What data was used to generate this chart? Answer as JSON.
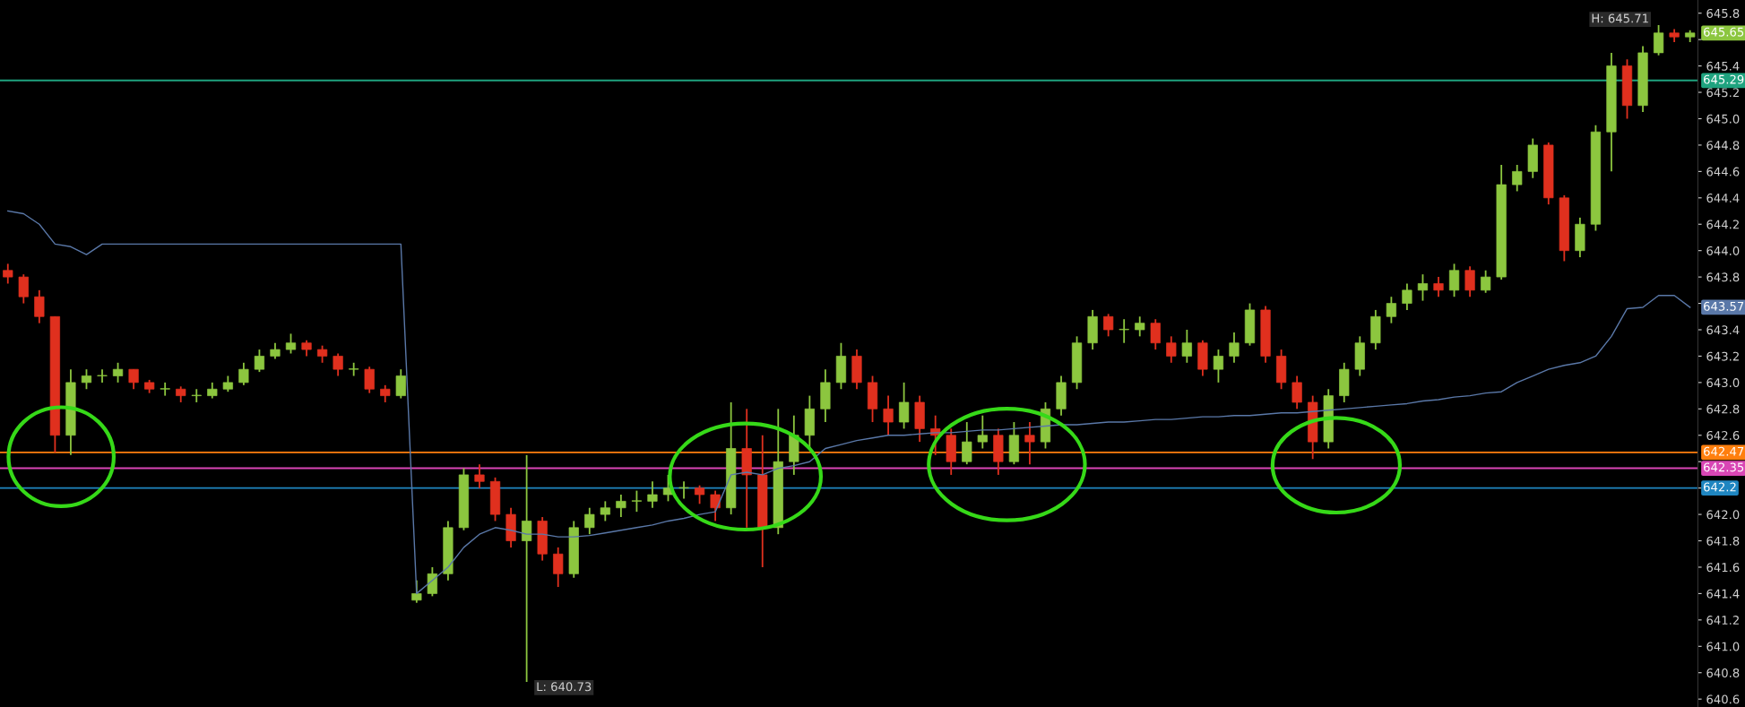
{
  "chart_data": {
    "type": "candlestick",
    "categories": [
      null,
      null,
      null,
      null,
      null,
      null,
      null,
      null,
      null,
      null,
      null,
      null,
      null,
      null,
      null,
      null,
      null,
      null,
      null,
      null,
      null,
      null,
      null,
      null,
      null,
      null,
      null,
      null,
      null,
      null,
      null,
      null,
      null,
      null,
      null,
      null,
      null,
      null,
      null,
      null,
      null,
      null,
      null,
      null,
      null,
      null,
      null,
      null,
      null,
      null,
      null,
      null,
      null,
      null,
      null,
      null,
      null,
      null,
      null,
      null,
      null,
      null,
      null,
      null,
      null,
      null,
      null,
      null,
      null,
      null,
      null,
      null,
      null,
      null,
      null,
      null,
      null,
      null,
      null,
      null,
      null,
      null,
      null,
      null,
      null,
      null,
      null,
      null,
      null,
      null,
      null,
      null,
      null,
      null,
      null,
      null,
      null,
      null,
      null,
      null,
      null,
      null,
      null,
      null,
      null,
      null,
      null,
      null
    ],
    "ohlc": [
      [
        643.85,
        643.9,
        643.75,
        643.8
      ],
      [
        643.8,
        643.82,
        643.6,
        643.65
      ],
      [
        643.65,
        643.7,
        643.45,
        643.5
      ],
      [
        643.5,
        643.5,
        642.47,
        642.6
      ],
      [
        642.6,
        643.1,
        642.45,
        643.0
      ],
      [
        643.0,
        643.1,
        642.95,
        643.05
      ],
      [
        643.05,
        643.1,
        643.0,
        643.05
      ],
      [
        643.05,
        643.15,
        643.0,
        643.1
      ],
      [
        643.1,
        643.1,
        642.95,
        643.0
      ],
      [
        643.0,
        643.02,
        642.92,
        642.95
      ],
      [
        642.95,
        643.0,
        642.9,
        642.95
      ],
      [
        642.95,
        642.97,
        642.85,
        642.9
      ],
      [
        642.9,
        642.95,
        642.85,
        642.9
      ],
      [
        642.9,
        643.0,
        642.88,
        642.95
      ],
      [
        642.95,
        643.05,
        642.93,
        643.0
      ],
      [
        643.0,
        643.15,
        642.98,
        643.1
      ],
      [
        643.1,
        643.25,
        643.08,
        643.2
      ],
      [
        643.2,
        643.3,
        643.18,
        643.25
      ],
      [
        643.25,
        643.37,
        643.22,
        643.3
      ],
      [
        643.3,
        643.32,
        643.2,
        643.25
      ],
      [
        643.25,
        643.28,
        643.15,
        643.2
      ],
      [
        643.2,
        643.22,
        643.05,
        643.1
      ],
      [
        643.1,
        643.15,
        643.05,
        643.1
      ],
      [
        643.1,
        643.12,
        642.92,
        642.95
      ],
      [
        642.95,
        642.98,
        642.85,
        642.9
      ],
      [
        642.9,
        643.1,
        642.88,
        643.05
      ],
      [
        641.35,
        641.5,
        641.33,
        641.4
      ],
      [
        641.4,
        641.6,
        641.38,
        641.55
      ],
      [
        641.55,
        641.95,
        641.5,
        641.9
      ],
      [
        641.9,
        642.35,
        641.88,
        642.3
      ],
      [
        642.3,
        642.38,
        642.2,
        642.25
      ],
      [
        642.25,
        642.28,
        641.95,
        642.0
      ],
      [
        642.0,
        642.05,
        641.75,
        641.8
      ],
      [
        641.8,
        642.45,
        640.73,
        641.95
      ],
      [
        641.95,
        641.98,
        641.65,
        641.7
      ],
      [
        641.7,
        641.75,
        641.45,
        641.55
      ],
      [
        641.55,
        641.95,
        641.52,
        641.9
      ],
      [
        641.9,
        642.05,
        641.85,
        642.0
      ],
      [
        642.0,
        642.1,
        641.95,
        642.05
      ],
      [
        642.05,
        642.15,
        641.98,
        642.1
      ],
      [
        642.1,
        642.18,
        642.02,
        642.1
      ],
      [
        642.1,
        642.25,
        642.05,
        642.15
      ],
      [
        642.15,
        642.3,
        642.1,
        642.2
      ],
      [
        642.2,
        642.25,
        642.12,
        642.2
      ],
      [
        642.2,
        642.22,
        642.08,
        642.15
      ],
      [
        642.15,
        642.18,
        641.95,
        642.05
      ],
      [
        642.05,
        642.85,
        642.0,
        642.5
      ],
      [
        642.5,
        642.8,
        641.9,
        642.3
      ],
      [
        642.3,
        642.6,
        641.6,
        641.9
      ],
      [
        641.9,
        642.8,
        641.85,
        642.4
      ],
      [
        642.4,
        642.75,
        642.3,
        642.6
      ],
      [
        642.6,
        642.9,
        642.5,
        642.8
      ],
      [
        642.8,
        643.1,
        642.7,
        643.0
      ],
      [
        643.0,
        643.3,
        642.95,
        643.2
      ],
      [
        643.2,
        643.25,
        642.95,
        643.0
      ],
      [
        643.0,
        643.05,
        642.7,
        642.8
      ],
      [
        642.8,
        642.9,
        642.6,
        642.7
      ],
      [
        642.7,
        643.0,
        642.65,
        642.85
      ],
      [
        642.85,
        642.9,
        642.55,
        642.65
      ],
      [
        642.65,
        642.75,
        642.45,
        642.6
      ],
      [
        642.6,
        642.65,
        642.3,
        642.4
      ],
      [
        642.4,
        642.7,
        642.38,
        642.55
      ],
      [
        642.55,
        642.75,
        642.5,
        642.6
      ],
      [
        642.6,
        642.65,
        642.3,
        642.4
      ],
      [
        642.4,
        642.7,
        642.38,
        642.6
      ],
      [
        642.6,
        642.7,
        642.38,
        642.55
      ],
      [
        642.55,
        642.85,
        642.5,
        642.8
      ],
      [
        642.8,
        643.05,
        642.75,
        643.0
      ],
      [
        643.0,
        643.35,
        642.95,
        643.3
      ],
      [
        643.3,
        643.55,
        643.25,
        643.5
      ],
      [
        643.5,
        643.52,
        643.35,
        643.4
      ],
      [
        643.4,
        643.48,
        643.3,
        643.4
      ],
      [
        643.4,
        643.5,
        643.35,
        643.45
      ],
      [
        643.45,
        643.48,
        643.25,
        643.3
      ],
      [
        643.3,
        643.35,
        643.15,
        643.2
      ],
      [
        643.2,
        643.4,
        643.15,
        643.3
      ],
      [
        643.3,
        643.32,
        643.05,
        643.1
      ],
      [
        643.1,
        643.25,
        643.0,
        643.2
      ],
      [
        643.2,
        643.38,
        643.15,
        643.3
      ],
      [
        643.3,
        643.6,
        643.28,
        643.55
      ],
      [
        643.55,
        643.58,
        643.15,
        643.2
      ],
      [
        643.2,
        643.25,
        642.95,
        643.0
      ],
      [
        643.0,
        643.05,
        642.8,
        642.85
      ],
      [
        642.85,
        642.9,
        642.42,
        642.55
      ],
      [
        642.55,
        642.95,
        642.5,
        642.9
      ],
      [
        642.9,
        643.15,
        642.85,
        643.1
      ],
      [
        643.1,
        643.35,
        643.05,
        643.3
      ],
      [
        643.3,
        643.55,
        643.25,
        643.5
      ],
      [
        643.5,
        643.65,
        643.45,
        643.6
      ],
      [
        643.6,
        643.75,
        643.55,
        643.7
      ],
      [
        643.7,
        643.82,
        643.62,
        643.75
      ],
      [
        643.75,
        643.8,
        643.65,
        643.7
      ],
      [
        643.7,
        643.9,
        643.65,
        643.85
      ],
      [
        643.85,
        643.88,
        643.65,
        643.7
      ],
      [
        643.7,
        643.85,
        643.68,
        643.8
      ],
      [
        643.8,
        644.65,
        643.78,
        644.5
      ],
      [
        644.5,
        644.65,
        644.45,
        644.6
      ],
      [
        644.6,
        644.85,
        644.55,
        644.8
      ],
      [
        644.8,
        644.82,
        644.35,
        644.4
      ],
      [
        644.4,
        644.42,
        643.92,
        644.0
      ],
      [
        644.0,
        644.25,
        643.95,
        644.2
      ],
      [
        644.2,
        644.95,
        644.15,
        644.9
      ],
      [
        644.9,
        645.5,
        644.6,
        645.4
      ],
      [
        645.4,
        645.45,
        645.0,
        645.1
      ],
      [
        645.1,
        645.55,
        645.05,
        645.5
      ],
      [
        645.5,
        645.71,
        645.48,
        645.65
      ],
      [
        645.65,
        645.68,
        645.58,
        645.62
      ],
      [
        645.62,
        645.67,
        645.58,
        645.65
      ]
    ],
    "colors": [
      "#e0301e",
      "#e0301e",
      "#e0301e",
      "#e0301e",
      "#8cc63f",
      "#8cc63f",
      "#8cc63f",
      "#8cc63f",
      "#e0301e",
      "#e0301e",
      "#8cc63f",
      "#e0301e",
      "#8cc63f",
      "#8cc63f",
      "#8cc63f",
      "#8cc63f",
      "#8cc63f",
      "#8cc63f",
      "#8cc63f",
      "#e0301e",
      "#e0301e",
      "#e0301e",
      "#8cc63f",
      "#e0301e",
      "#e0301e",
      "#8cc63f",
      "#8cc63f",
      "#8cc63f",
      "#8cc63f",
      "#8cc63f",
      "#e0301e",
      "#e0301e",
      "#e0301e",
      "#8cc63f",
      "#e0301e",
      "#e0301e",
      "#8cc63f",
      "#8cc63f",
      "#8cc63f",
      "#8cc63f",
      "#8cc63f",
      "#8cc63f",
      "#8cc63f",
      "#8cc63f",
      "#e0301e",
      "#e0301e",
      "#8cc63f",
      "#e0301e",
      "#e0301e",
      "#8cc63f",
      "#8cc63f",
      "#8cc63f",
      "#8cc63f",
      "#8cc63f",
      "#e0301e",
      "#e0301e",
      "#e0301e",
      "#8cc63f",
      "#e0301e",
      "#e0301e",
      "#e0301e",
      "#8cc63f",
      "#8cc63f",
      "#e0301e",
      "#8cc63f",
      "#e0301e",
      "#8cc63f",
      "#8cc63f",
      "#8cc63f",
      "#8cc63f",
      "#e0301e",
      "#8cc63f",
      "#8cc63f",
      "#e0301e",
      "#e0301e",
      "#8cc63f",
      "#e0301e",
      "#8cc63f",
      "#8cc63f",
      "#8cc63f",
      "#e0301e",
      "#e0301e",
      "#e0301e",
      "#e0301e",
      "#8cc63f",
      "#8cc63f",
      "#8cc63f",
      "#8cc63f",
      "#8cc63f",
      "#8cc63f",
      "#8cc63f",
      "#e0301e",
      "#8cc63f",
      "#e0301e",
      "#8cc63f",
      "#8cc63f",
      "#8cc63f",
      "#8cc63f",
      "#e0301e",
      "#e0301e",
      "#8cc63f",
      "#8cc63f",
      "#8cc63f",
      "#e0301e",
      "#8cc63f",
      "#8cc63f",
      "#e0301e",
      "#8cc63f"
    ],
    "value_labels": [
      null,
      null,
      null,
      null,
      null,
      null,
      null,
      null,
      null,
      null,
      null,
      null,
      null,
      null,
      null,
      null,
      null,
      null,
      null,
      null,
      null,
      null,
      null,
      null,
      null,
      null,
      null,
      null,
      null,
      null,
      null,
      null,
      null,
      null,
      null,
      null,
      null,
      null,
      null,
      null,
      null,
      null,
      null,
      null,
      null,
      null,
      null,
      null,
      null,
      null,
      null,
      null,
      null,
      null,
      null,
      null,
      null,
      null,
      null,
      null,
      null,
      null,
      null,
      null,
      null,
      null,
      null,
      null,
      null,
      null,
      null,
      null,
      null,
      null,
      null,
      null,
      null,
      null,
      null,
      null,
      null,
      null,
      null,
      null,
      null,
      null,
      null,
      null,
      null,
      null,
      null,
      null,
      null,
      null,
      null,
      null,
      null,
      null,
      null,
      null,
      null,
      null,
      null,
      null,
      null,
      null,
      null,
      "645.65"
    ],
    "series": [
      {
        "type": "line",
        "color": "#5a78a8",
        "values": [
          644.3,
          644.28,
          644.2,
          644.05,
          644.03,
          643.97,
          644.05,
          644.05,
          644.05,
          644.05,
          644.05,
          644.05,
          644.05,
          644.05,
          644.05,
          644.05,
          644.05,
          644.05,
          644.05,
          644.05,
          644.05,
          644.05,
          644.05,
          644.05,
          644.05,
          644.05,
          641.4,
          641.5,
          641.6,
          641.75,
          641.85,
          641.9,
          641.88,
          641.85,
          641.85,
          641.83,
          641.83,
          641.84,
          641.86,
          641.88,
          641.9,
          641.92,
          641.95,
          641.97,
          642.0,
          642.02,
          642.3,
          642.32,
          642.3,
          642.35,
          642.37,
          642.4,
          642.5,
          642.53,
          642.56,
          642.58,
          642.6,
          642.6,
          642.61,
          642.62,
          642.62,
          642.63,
          642.64,
          642.64,
          642.65,
          642.66,
          642.67,
          642.68,
          642.68,
          642.69,
          642.7,
          642.7,
          642.71,
          642.72,
          642.72,
          642.73,
          642.74,
          642.74,
          642.75,
          642.75,
          642.76,
          642.77,
          642.77,
          642.78,
          642.79,
          642.8,
          642.81,
          642.82,
          642.83,
          642.84,
          642.86,
          642.87,
          642.89,
          642.9,
          642.92,
          642.93,
          643.0,
          643.05,
          643.1,
          643.13,
          643.15,
          643.2,
          643.35,
          643.56,
          643.57,
          643.66,
          643.66,
          643.57
        ],
        "value_labels": [
          null,
          null,
          null,
          null,
          null,
          null,
          null,
          null,
          null,
          null,
          null,
          null,
          null,
          null,
          null,
          null,
          null,
          null,
          null,
          null,
          null,
          null,
          null,
          null,
          null,
          null,
          null,
          null,
          null,
          null,
          null,
          null,
          null,
          null,
          null,
          null,
          null,
          null,
          null,
          null,
          null,
          null,
          null,
          null,
          null,
          null,
          null,
          null,
          null,
          null,
          null,
          null,
          null,
          null,
          null,
          null,
          null,
          null,
          null,
          null,
          null,
          null,
          null,
          null,
          null,
          null,
          null,
          null,
          null,
          null,
          null,
          null,
          null,
          null,
          null,
          null,
          null,
          null,
          null,
          null,
          null,
          null,
          null,
          null,
          null,
          null,
          null,
          null,
          null,
          null,
          null,
          null,
          null,
          null,
          null,
          null,
          null,
          null,
          null,
          null,
          null,
          null,
          null,
          null,
          null,
          null,
          null,
          "643.57"
        ]
      }
    ],
    "ylim": [
      640.54,
      645.9
    ],
    "yticks": [
      640.6,
      640.8,
      {
        "value": 641,
        "label": "641.0"
      },
      641.2,
      641.4,
      641.6,
      641.8,
      {
        "value": 642,
        "label": "642.0"
      },
      {
        "value": 642.2,
        "label": null
      },
      {
        "value": 642.4,
        "label": null
      },
      642.6,
      642.8,
      {
        "value": 643,
        "label": "643.0"
      },
      643.2,
      643.4,
      {
        "value": 643.6,
        "label": null
      },
      643.8,
      {
        "value": 644,
        "label": "644.0"
      },
      644.2,
      644.4,
      644.6,
      644.8,
      {
        "value": 645,
        "label": "645.0"
      },
      645.2,
      645.4,
      {
        "value": 645.6,
        "label": null
      },
      645.8
    ],
    "tick_labels": "y",
    "ref_lines": [
      {
        "axis": "y",
        "value": 645.29,
        "label": "645.29",
        "color": "#1fa37f"
      },
      {
        "axis": "y",
        "value": 642.47,
        "label": "642.47",
        "color": "#ff7f0e"
      },
      {
        "axis": "y",
        "value": 642.35,
        "label": "642.35",
        "color": "#d946b5"
      },
      {
        "axis": "y",
        "value": 642.2,
        "label": "642.2",
        "color": "#1f86c1"
      }
    ],
    "annotations": [
      "H: 645.71",
      "L: 640.73"
    ],
    "grid": false
  }
}
